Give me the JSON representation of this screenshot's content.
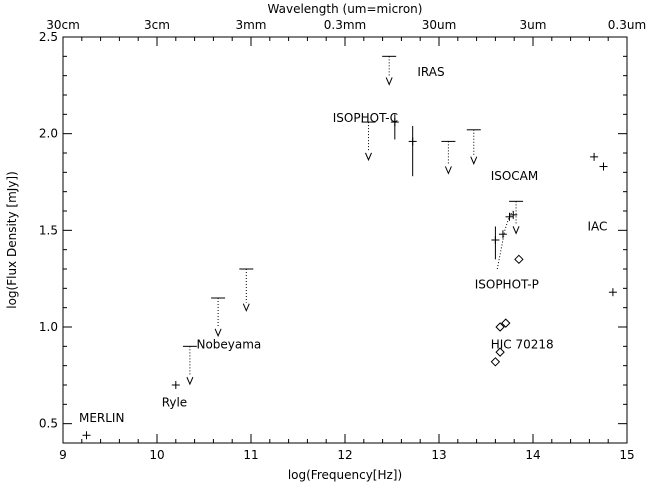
{
  "chart_data": {
    "type": "scatter",
    "title": "",
    "xlabel": "log(Frequency[Hz])",
    "ylabel": "log(Flux Density [mJy])",
    "top_axis_label": "Wavelength (um=micron)",
    "xlim": [
      9,
      15
    ],
    "ylim": [
      0.4,
      2.5
    ],
    "x_ticks": [
      9,
      10,
      11,
      12,
      13,
      14,
      15
    ],
    "x_tick_labels": [
      "9",
      "10",
      "11",
      "12",
      "13",
      "14",
      "15"
    ],
    "y_ticks": [
      0.5,
      1.0,
      1.5,
      2.0,
      2.5
    ],
    "y_tick_labels": [
      "0.5",
      "1.0",
      "1.5",
      "2.0",
      "2.5"
    ],
    "top_ticks": [
      9,
      10,
      11,
      12,
      13,
      14,
      15
    ],
    "top_tick_labels": [
      "30cm",
      "3cm",
      "3mm",
      "0.3mm",
      "30um",
      "3um",
      "0.3um"
    ],
    "grid": false,
    "detections": [
      {
        "x": 9.25,
        "y": 0.44
      },
      {
        "x": 10.2,
        "y": 0.7
      },
      {
        "x": 12.53,
        "y": 2.06,
        "err": [
          1.97,
          2.1
        ]
      },
      {
        "x": 12.72,
        "y": 1.96,
        "err": [
          1.78,
          2.04
        ]
      },
      {
        "x": 13.6,
        "y": 1.45,
        "err": [
          1.35,
          1.52
        ]
      },
      {
        "x": 13.68,
        "y": 1.48
      },
      {
        "x": 13.75,
        "y": 1.57
      },
      {
        "x": 13.79,
        "y": 1.58
      },
      {
        "x": 14.65,
        "y": 1.88
      },
      {
        "x": 14.75,
        "y": 1.83
      },
      {
        "x": 14.85,
        "y": 1.18
      }
    ],
    "upper_limits": [
      {
        "x": 10.35,
        "y": 0.9,
        "arrow_to": 0.72
      },
      {
        "x": 10.65,
        "y": 1.15,
        "arrow_to": 0.97
      },
      {
        "x": 10.95,
        "y": 1.3,
        "arrow_to": 1.1
      },
      {
        "x": 12.25,
        "y": 2.06,
        "arrow_to": 1.88
      },
      {
        "x": 12.47,
        "y": 2.4,
        "arrow_to": 2.27
      },
      {
        "x": 13.1,
        "y": 1.96,
        "arrow_to": 1.81
      },
      {
        "x": 13.37,
        "y": 2.02,
        "arrow_to": 1.86
      },
      {
        "x": 13.82,
        "y": 1.65,
        "arrow_to": 1.5
      }
    ],
    "diamonds": [
      {
        "x": 13.6,
        "y": 0.82
      },
      {
        "x": 13.65,
        "y": 0.87
      },
      {
        "x": 13.65,
        "y": 1.0
      },
      {
        "x": 13.71,
        "y": 1.02
      },
      {
        "x": 13.85,
        "y": 1.35
      }
    ],
    "faint_curve": [
      {
        "x": 13.62,
        "y": 1.3
      },
      {
        "x": 13.66,
        "y": 1.4
      },
      {
        "x": 13.7,
        "y": 1.5
      },
      {
        "x": 13.74,
        "y": 1.56
      },
      {
        "x": 13.78,
        "y": 1.6
      }
    ],
    "annotations": [
      {
        "text": "MERLIN",
        "x": 9.17,
        "y": 0.53
      },
      {
        "text": "Ryle",
        "x": 10.05,
        "y": 0.61
      },
      {
        "text": "Nobeyama",
        "x": 10.42,
        "y": 0.91
      },
      {
        "text": "ISOPHOT-C",
        "x": 11.87,
        "y": 2.08
      },
      {
        "text": "IRAS",
        "x": 12.77,
        "y": 2.32
      },
      {
        "text": "ISOCAM",
        "x": 13.55,
        "y": 1.78
      },
      {
        "text": "IAC",
        "x": 14.58,
        "y": 1.52
      },
      {
        "text": "ISOPHOT-P",
        "x": 13.38,
        "y": 1.22
      },
      {
        "text": "HIC  70218",
        "x": 13.55,
        "y": 0.91
      }
    ]
  }
}
